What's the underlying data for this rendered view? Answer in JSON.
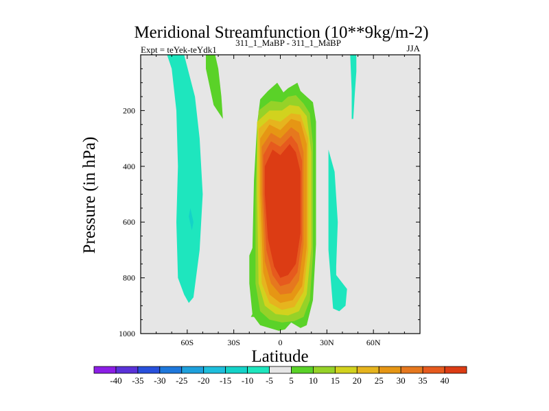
{
  "chart_data": {
    "type": "contour",
    "title": "Meridional Streamfunction (10**9kg/m-2)",
    "subtitle_left": "Expt = teYek-teYdk1",
    "subtitle_center": "311_1_MaBP - 311_1_MaBP",
    "subtitle_right": "JJA",
    "xlabel": "Latitude",
    "ylabel": "Pressure (in hPa)",
    "xlim": [
      -90,
      90
    ],
    "ylim": [
      1000,
      0
    ],
    "x_ticks": [
      {
        "value": -60,
        "label": "60S"
      },
      {
        "value": -30,
        "label": "30S"
      },
      {
        "value": 0,
        "label": "0"
      },
      {
        "value": 30,
        "label": "30N"
      },
      {
        "value": 60,
        "label": "60N"
      }
    ],
    "y_ticks": [
      {
        "value": 200,
        "label": "200"
      },
      {
        "value": 400,
        "label": "400"
      },
      {
        "value": 600,
        "label": "600"
      },
      {
        "value": 800,
        "label": "800"
      },
      {
        "value": 1000,
        "label": "1000"
      }
    ],
    "colorbar": {
      "labels": [
        "-40",
        "-35",
        "-30",
        "-25",
        "-20",
        "-15",
        "-10",
        "-5",
        "5",
        "10",
        "15",
        "20",
        "25",
        "30",
        "35",
        "40"
      ],
      "colors": [
        "#8c1ee6",
        "#5a32d8",
        "#2850dc",
        "#1e78dc",
        "#1ea0dc",
        "#1ebedc",
        "#14d2c8",
        "#1ee6be",
        "#e6e6e6",
        "#5ad228",
        "#96d228",
        "#d2d21e",
        "#e6b41e",
        "#e69614",
        "#e6781e",
        "#e65a1e",
        "#dc3c14"
      ]
    },
    "plot_background": "#e6e6e6",
    "regions": [
      {
        "level": -5,
        "color": "#1ee6be",
        "lat": [
          -73,
          -62,
          -55,
          -52,
          -50,
          -52,
          -56,
          -59,
          -62,
          -66,
          -67,
          -66,
          -67,
          -70,
          -73
        ],
        "p": [
          0,
          0,
          150,
          300,
          500,
          700,
          870,
          890,
          860,
          800,
          600,
          400,
          200,
          50,
          0
        ]
      },
      {
        "level": -10,
        "color": "#14d2c8",
        "lat": [
          -58,
          -56,
          -57,
          -59
        ],
        "p": [
          550,
          600,
          630,
          580
        ]
      },
      {
        "level": 5,
        "color": "#5ad228",
        "lat": [
          -48,
          -42,
          -40,
          -38,
          -37,
          -43,
          -48
        ],
        "p": [
          0,
          0,
          50,
          150,
          230,
          180,
          50
        ]
      },
      {
        "level": -5,
        "color": "#1ee6be",
        "lat": [
          31,
          35,
          37,
          36,
          36,
          43,
          42,
          38,
          34,
          33,
          31,
          31
        ],
        "p": [
          340,
          420,
          600,
          760,
          790,
          840,
          900,
          920,
          910,
          840,
          700,
          400
        ]
      },
      {
        "level": -5,
        "color": "#1ee6be",
        "lat": [
          45,
          49,
          49,
          48,
          47,
          46,
          46,
          45
        ],
        "p": [
          0,
          0,
          60,
          140,
          230,
          230,
          130,
          0
        ]
      },
      {
        "level": 5,
        "color": "#5ad228",
        "lat": [
          -19,
          -16,
          -13,
          -12,
          -15,
          -17,
          -20,
          -20,
          -18
        ],
        "p": [
          940,
          940,
          900,
          800,
          700,
          680,
          720,
          820,
          930
        ]
      },
      {
        "level": 5,
        "color": "#5ad228",
        "lat": [
          -13,
          -8,
          -2,
          2,
          5,
          11,
          13,
          17,
          21,
          23,
          23,
          21,
          17,
          13,
          7,
          3,
          -1,
          -7,
          -13,
          -17,
          -18,
          -18,
          -17,
          -15,
          -13
        ],
        "p": [
          160,
          130,
          100,
          135,
          120,
          100,
          130,
          150,
          170,
          240,
          680,
          880,
          970,
          980,
          960,
          985,
          990,
          980,
          970,
          940,
          880,
          700,
          450,
          250,
          160
        ]
      },
      {
        "level": 10,
        "color": "#96d228",
        "lat": [
          -14,
          -6,
          1,
          5,
          10,
          15,
          19,
          21,
          21,
          19,
          15,
          9,
          1,
          -7,
          -13,
          -16,
          -16,
          -15
        ],
        "p": [
          200,
          165,
          170,
          150,
          145,
          175,
          210,
          320,
          720,
          880,
          940,
          955,
          960,
          950,
          920,
          820,
          520,
          300
        ]
      },
      {
        "level": 15,
        "color": "#d2d21e",
        "lat": [
          -15,
          -7,
          1,
          6,
          12,
          17,
          20,
          20,
          17,
          12,
          5,
          -3,
          -10,
          -14,
          -15
        ],
        "p": [
          240,
          200,
          200,
          180,
          185,
          220,
          350,
          690,
          860,
          920,
          935,
          930,
          900,
          820,
          500
        ]
      },
      {
        "level": 20,
        "color": "#e6b41e",
        "lat": [
          -14,
          -7,
          0,
          7,
          13,
          18,
          18,
          15,
          9,
          1,
          -7,
          -12,
          -14
        ],
        "p": [
          265,
          230,
          240,
          210,
          215,
          300,
          700,
          850,
          905,
          915,
          890,
          820,
          500
        ]
      },
      {
        "level": 25,
        "color": "#e69614",
        "lat": [
          -13,
          -7,
          0,
          7,
          13,
          17,
          17,
          14,
          8,
          0,
          -7,
          -11,
          -13
        ],
        "p": [
          300,
          250,
          270,
          230,
          240,
          320,
          690,
          830,
          880,
          890,
          860,
          780,
          500
        ]
      },
      {
        "level": 30,
        "color": "#e6781e",
        "lat": [
          -12,
          -6,
          0,
          7,
          12,
          15,
          15,
          12,
          7,
          0,
          -6,
          -10,
          -12
        ],
        "p": [
          330,
          280,
          300,
          260,
          280,
          350,
          680,
          810,
          855,
          860,
          820,
          740,
          500
        ]
      },
      {
        "level": 35,
        "color": "#e65a1e",
        "lat": [
          -11,
          -6,
          0,
          7,
          11,
          14,
          14,
          11,
          6,
          0,
          -5,
          -9,
          -11
        ],
        "p": [
          360,
          310,
          330,
          290,
          320,
          380,
          660,
          780,
          820,
          830,
          790,
          700,
          500
        ]
      },
      {
        "level": 40,
        "color": "#dc3c14",
        "lat": [
          -10,
          -5,
          0,
          6,
          10,
          13,
          13,
          10,
          5,
          0,
          -4,
          -8,
          -10
        ],
        "p": [
          400,
          340,
          360,
          320,
          350,
          420,
          640,
          750,
          790,
          800,
          760,
          660,
          500
        ]
      }
    ]
  }
}
